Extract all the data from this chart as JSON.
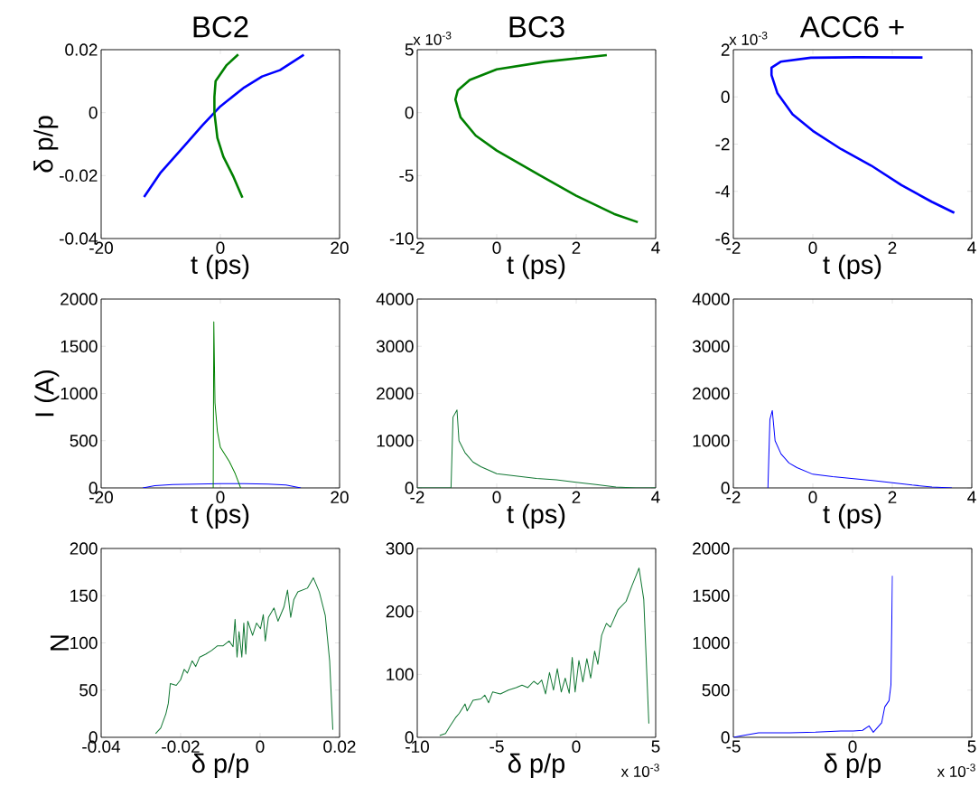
{
  "chart_data": [
    {
      "type": "line",
      "title": "BC2",
      "xlabel": "t (ps)",
      "ylabel": "δ p/p",
      "xlim": [
        -20,
        20
      ],
      "ylim": [
        -0.04,
        0.02
      ],
      "xticks": [
        -20,
        0,
        20
      ],
      "yticks": [
        -0.04,
        -0.02,
        0,
        0.02
      ],
      "series": [
        {
          "color": "#0000ff",
          "x": [
            -12.8,
            -10,
            -6,
            -3,
            0,
            4,
            7,
            10,
            14
          ],
          "values": [
            -0.0268,
            -0.019,
            -0.0105,
            -0.004,
            0.002,
            0.008,
            0.0115,
            0.0135,
            0.0184
          ]
        },
        {
          "color": "#008000",
          "x": [
            3.0,
            1.0,
            -0.8,
            -1.0,
            -1.0,
            -0.5,
            0.5,
            2.1,
            3.7
          ],
          "values": [
            0.0185,
            0.015,
            0.01,
            0.005,
            0,
            -0.008,
            -0.014,
            -0.02,
            -0.027
          ]
        }
      ]
    },
    {
      "type": "line",
      "title": "BC3",
      "xlabel": "t (ps)",
      "xlim": [
        -2,
        4
      ],
      "ylim": [
        -10,
        5
      ],
      "xticks": [
        -2,
        0,
        2,
        4
      ],
      "yticks": [
        -10,
        -5,
        0,
        5
      ],
      "annotations": [
        "x 10$^{-3}$"
      ],
      "series": [
        {
          "color": "#008000",
          "x": [
            2.77,
            1.21,
            0,
            -0.68,
            -0.98,
            -1.04,
            -0.91,
            -0.53,
            0,
            1.06,
            2.0,
            2.95,
            3.55
          ],
          "values": [
            4.57,
            4.04,
            3.44,
            2.6,
            1.77,
            1.05,
            -0.38,
            -1.82,
            -3.01,
            -4.93,
            -6.6,
            -8.04,
            -8.7
          ]
        }
      ]
    },
    {
      "type": "line",
      "title": "ACC6 +",
      "xlabel": "t (ps)",
      "xlim": [
        -2,
        4
      ],
      "ylim": [
        -6,
        2
      ],
      "xticks": [
        -2,
        0,
        2,
        4
      ],
      "yticks": [
        -6,
        -4,
        -2,
        0,
        2
      ],
      "annotations": [
        "x 10$^{-3}$"
      ],
      "series": [
        {
          "color": "#0000ff",
          "x": [
            2.76,
            1.09,
            -0.05,
            -0.81,
            -1.04,
            -1.04,
            -0.89,
            -0.51,
            0,
            0.71,
            1.47,
            2.23,
            2.99,
            3.56
          ],
          "values": [
            1.67,
            1.68,
            1.66,
            1.49,
            1.24,
            0.92,
            0.15,
            -0.74,
            -1.44,
            -2.21,
            -2.91,
            -3.74,
            -4.44,
            -4.91
          ]
        }
      ]
    },
    {
      "type": "line",
      "xlabel": "t (ps)",
      "ylabel": "I (A)",
      "xlim": [
        -20,
        20
      ],
      "ylim": [
        0,
        2000
      ],
      "xticks": [
        -20,
        0,
        20
      ],
      "yticks": [
        0,
        500,
        1000,
        1500,
        2000
      ],
      "series": [
        {
          "color": "#0000ff",
          "x": [
            -13,
            -11,
            -8,
            -4,
            0,
            4,
            8,
            11,
            13.5
          ],
          "values": [
            0,
            25,
            35,
            40,
            45,
            45,
            40,
            30,
            0
          ]
        },
        {
          "color": "#008000",
          "x": [
            -1.2,
            -1.1,
            -0.9,
            -0.5,
            0,
            0.5,
            1.5,
            2.5,
            3.4
          ],
          "values": [
            0,
            1760,
            900,
            600,
            430,
            380,
            280,
            150,
            0
          ]
        }
      ]
    },
    {
      "type": "line",
      "xlabel": "t (ps)",
      "xlim": [
        -2,
        4
      ],
      "ylim": [
        0,
        4000
      ],
      "xticks": [
        -2,
        0,
        2,
        4
      ],
      "yticks": [
        0,
        1000,
        2000,
        3000,
        4000
      ],
      "series": [
        {
          "color": "#117733",
          "x": [
            -2,
            -1.15,
            -1.1,
            -1.0,
            -0.95,
            -0.8,
            -0.6,
            -0.4,
            0,
            0.5,
            1,
            1.5,
            2,
            2.5,
            3,
            3.5,
            4
          ],
          "values": [
            0,
            0,
            1500,
            1650,
            1000,
            750,
            550,
            450,
            300,
            250,
            200,
            170,
            120,
            70,
            20,
            0,
            0
          ]
        }
      ]
    },
    {
      "type": "line",
      "xlabel": "t (ps)",
      "xlim": [
        -2,
        4
      ],
      "ylim": [
        0,
        4000
      ],
      "xticks": [
        -2,
        0,
        2,
        4
      ],
      "yticks": [
        0,
        1000,
        2000,
        3000,
        4000
      ],
      "series": [
        {
          "color": "#0000ff",
          "x": [
            -1.13,
            -1.08,
            -1.02,
            -0.95,
            -0.8,
            -0.6,
            -0.4,
            0,
            0.5,
            1,
            1.5,
            2,
            2.5,
            3,
            3.5
          ],
          "values": [
            0,
            1450,
            1640,
            1000,
            720,
            530,
            430,
            290,
            240,
            200,
            160,
            110,
            60,
            20,
            0
          ]
        }
      ]
    },
    {
      "type": "line",
      "xlabel": "δ p/p",
      "ylabel": "N",
      "xlim": [
        -0.04,
        0.02
      ],
      "ylim": [
        0,
        200
      ],
      "xticks": [
        -0.04,
        -0.02,
        0,
        0.02
      ],
      "yticks": [
        0,
        50,
        100,
        150,
        200
      ],
      "series": [
        {
          "color": "#117733",
          "x": [
            -0.0263,
            -0.025,
            -0.0237,
            -0.0231,
            -0.0226,
            -0.0211,
            -0.02,
            -0.0191,
            -0.0183,
            -0.0171,
            -0.0162,
            -0.0152,
            -0.0137,
            -0.0122,
            -0.0107,
            -0.0093,
            -0.0078,
            -0.0068,
            -0.0063,
            -0.0058,
            -0.0053,
            -0.0046,
            -0.0041,
            -0.0036,
            -0.0031,
            -0.0019,
            -0.0009,
            0.0001,
            0.0008,
            0.0013,
            0.0021,
            0.0035,
            0.0045,
            0.006,
            0.0069,
            0.0077,
            0.0085,
            0.0095,
            0.0119,
            0.0134,
            0.0149,
            0.0164,
            0.0175,
            0.0183
          ],
          "values": [
            4,
            10,
            25,
            36,
            57,
            55,
            61,
            72,
            68,
            81,
            75,
            85,
            88,
            92,
            97,
            97,
            102,
            96,
            125,
            85,
            112,
            85,
            121,
            88,
            123,
            108,
            121,
            115,
            130,
            102,
            127,
            137,
            123,
            138,
            156,
            127,
            146,
            154,
            158,
            169,
            154,
            129,
            81,
            8
          ]
        }
      ]
    },
    {
      "type": "line",
      "xlabel": "δ p/p",
      "xlim": [
        -10,
        5
      ],
      "ylim": [
        0,
        300
      ],
      "xticks": [
        -10,
        -5,
        0,
        5
      ],
      "yticks": [
        0,
        100,
        200,
        300
      ],
      "annotations": [
        "x 10$^{-3}$"
      ],
      "series": [
        {
          "color": "#117733",
          "x": [
            -8.59,
            -8.22,
            -7.98,
            -7.6,
            -7.36,
            -6.99,
            -6.86,
            -6.49,
            -6.0,
            -5.75,
            -5.51,
            -5.26,
            -4.77,
            -4.27,
            -3.78,
            -3.41,
            -3.04,
            -2.67,
            -2.42,
            -2.17,
            -1.93,
            -1.68,
            -1.43,
            -1.19,
            -0.94,
            -0.69,
            -0.44,
            -0.25,
            -0.07,
            0.17,
            0.42,
            0.67,
            0.91,
            1.16,
            1.36,
            1.6,
            1.9,
            2.15,
            2.64,
            3.14,
            3.51,
            3.75,
            3.95,
            4.25,
            4.57
          ],
          "values": [
            3,
            6,
            16,
            31,
            38,
            53,
            42,
            59,
            61,
            67,
            55,
            72,
            69,
            75,
            79,
            83,
            79,
            89,
            84,
            91,
            69,
            103,
            75,
            109,
            72,
            94,
            70,
            127,
            72,
            122,
            88,
            125,
            94,
            137,
            116,
            162,
            181,
            175,
            203,
            216,
            241,
            256,
            269,
            219,
            22
          ]
        }
      ]
    },
    {
      "type": "line",
      "xlabel": "δ p/p",
      "xlim": [
        -5,
        5
      ],
      "ylim": [
        0,
        2000
      ],
      "xticks": [
        -5,
        0,
        5
      ],
      "yticks": [
        0,
        500,
        1000,
        1500,
        2000
      ],
      "annotations": [
        "x 10$^{-3}$"
      ],
      "series": [
        {
          "color": "#0000ff",
          "x": [
            -5,
            -4.6,
            -3.94,
            -2.62,
            -1.56,
            -0.5,
            0.03,
            0.42,
            0.69,
            0.87,
            1.22,
            1.35,
            1.53,
            1.61,
            1.67
          ],
          "values": [
            0,
            20,
            47,
            47,
            54,
            67,
            67,
            74,
            121,
            54,
            154,
            322,
            389,
            557,
            1711
          ]
        }
      ]
    }
  ]
}
